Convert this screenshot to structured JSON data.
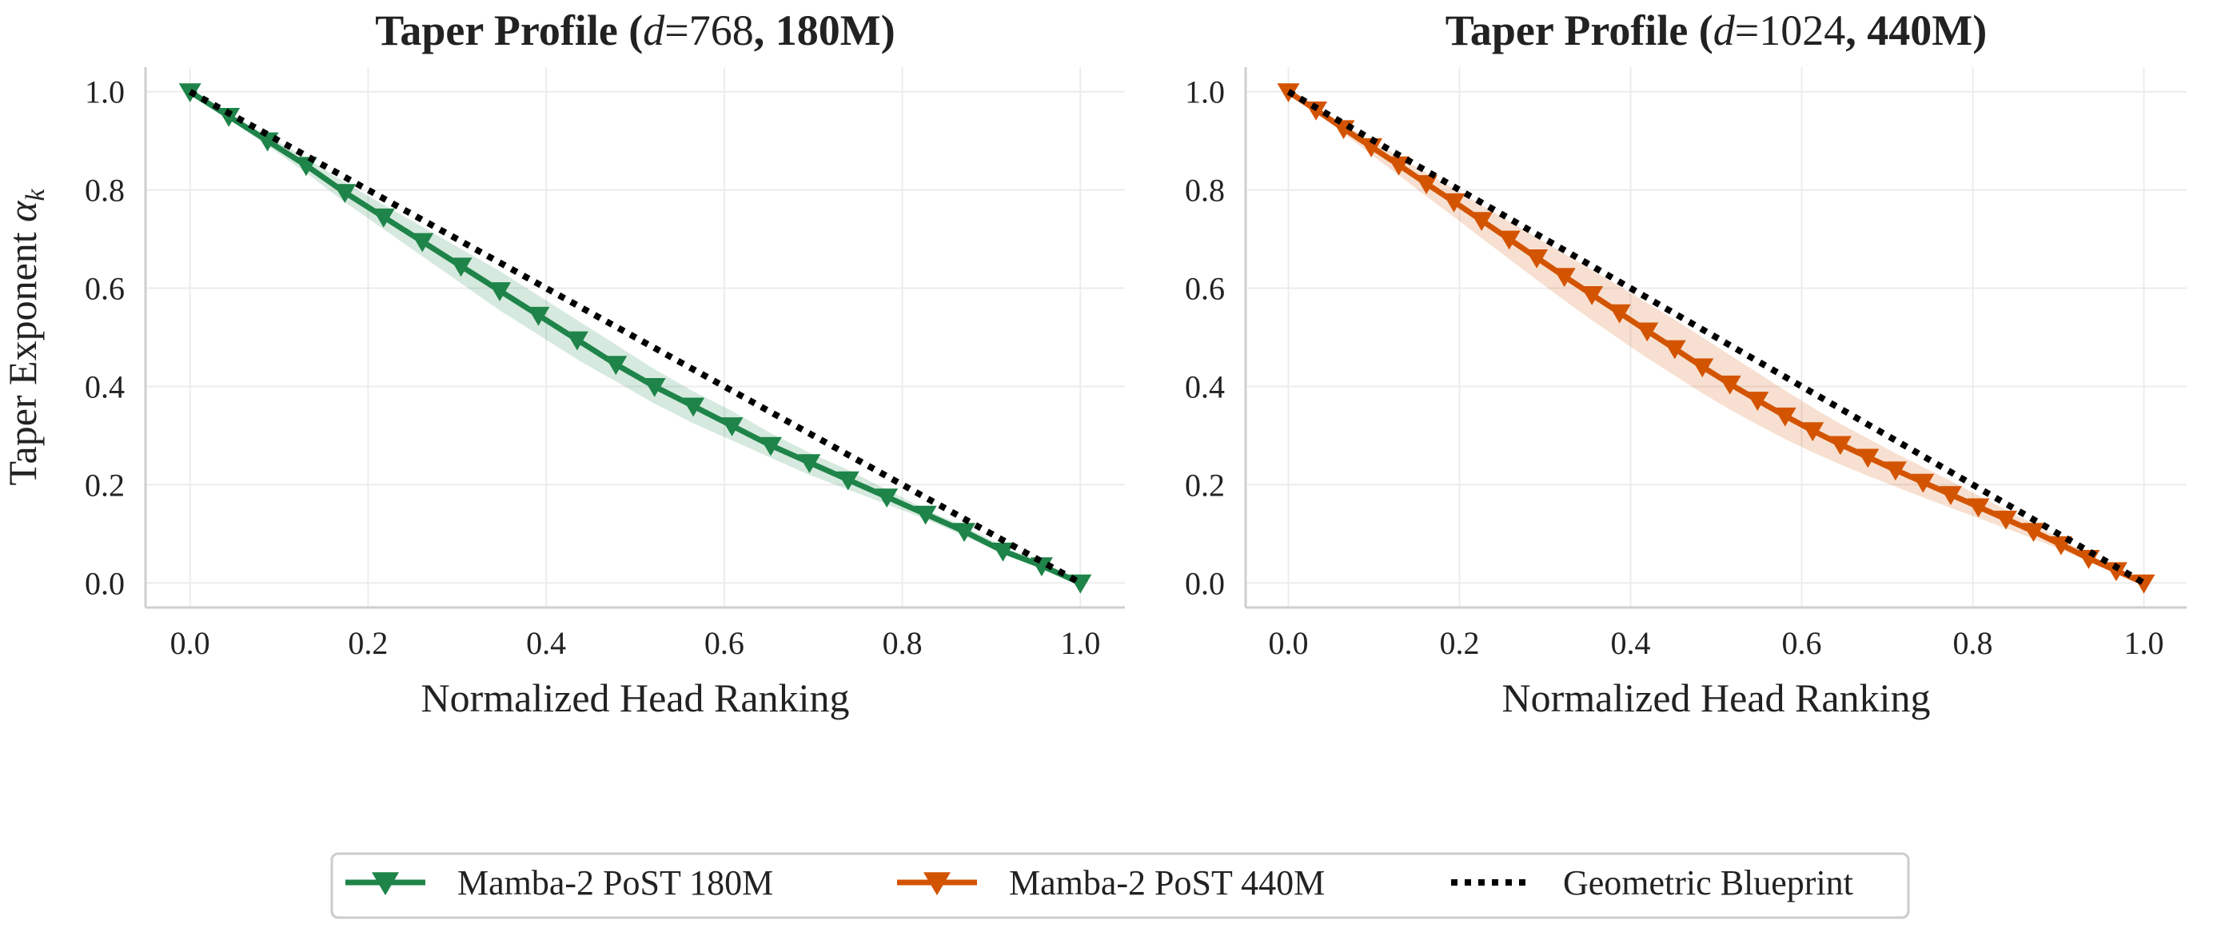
{
  "chart_data": [
    {
      "type": "line",
      "title_parts": [
        "Taper Profile (",
        "d",
        "=",
        "768",
        ", 180M)"
      ],
      "xlabel": "Normalized Head Ranking",
      "ylabel_parts": [
        "Taper Exponent ",
        "α",
        "k"
      ],
      "xlim": [
        -0.05,
        1.05
      ],
      "ylim": [
        -0.05,
        1.05
      ],
      "xticks": [
        "0.0",
        "0.2",
        "0.4",
        "0.6",
        "0.8",
        "1.0"
      ],
      "yticks": [
        "0.0",
        "0.2",
        "0.4",
        "0.6",
        "0.8",
        "1.0"
      ],
      "grid": true,
      "series": [
        {
          "name": "Mamba-2 PoST 180M",
          "color": "#1e8449",
          "marker": "triangle-down",
          "x": [
            0.0,
            0.0435,
            0.087,
            0.1304,
            0.1739,
            0.2174,
            0.2609,
            0.3043,
            0.3478,
            0.3913,
            0.4348,
            0.4783,
            0.5217,
            0.5652,
            0.6087,
            0.6522,
            0.6957,
            0.7391,
            0.7826,
            0.8261,
            0.8696,
            0.913,
            0.9565,
            1.0
          ],
          "y": [
            1.0,
            0.95,
            0.9,
            0.85,
            0.795,
            0.745,
            0.695,
            0.645,
            0.595,
            0.545,
            0.495,
            0.445,
            0.4,
            0.36,
            0.32,
            0.28,
            0.245,
            0.21,
            0.175,
            0.14,
            0.105,
            0.065,
            0.035,
            0.0
          ],
          "band_lower": [
            1.0,
            0.945,
            0.89,
            0.835,
            0.775,
            0.72,
            0.665,
            0.61,
            0.555,
            0.505,
            0.455,
            0.41,
            0.365,
            0.325,
            0.29,
            0.255,
            0.22,
            0.19,
            0.16,
            0.13,
            0.095,
            0.06,
            0.03,
            0.0
          ],
          "band_upper": [
            1.0,
            0.955,
            0.91,
            0.865,
            0.815,
            0.77,
            0.725,
            0.68,
            0.635,
            0.585,
            0.535,
            0.485,
            0.435,
            0.39,
            0.35,
            0.305,
            0.265,
            0.23,
            0.19,
            0.15,
            0.115,
            0.075,
            0.04,
            0.0
          ]
        },
        {
          "name": "Geometric Blueprint",
          "color": "#000000",
          "style": "dotted",
          "x": [
            0.0,
            1.0
          ],
          "y": [
            1.0,
            0.0
          ]
        }
      ]
    },
    {
      "type": "line",
      "title_parts": [
        "Taper Profile (",
        "d",
        "=",
        "1024",
        ", 440M)"
      ],
      "xlabel": "Normalized Head Ranking",
      "ylabel_parts": [
        "",
        "",
        ""
      ],
      "xlim": [
        -0.05,
        1.05
      ],
      "ylim": [
        -0.05,
        1.05
      ],
      "xticks": [
        "0.0",
        "0.2",
        "0.4",
        "0.6",
        "0.8",
        "1.0"
      ],
      "yticks": [
        "0.0",
        "0.2",
        "0.4",
        "0.6",
        "0.8",
        "1.0"
      ],
      "grid": true,
      "series": [
        {
          "name": "Mamba-2 PoST 440M",
          "color": "#d35400",
          "marker": "triangle-down",
          "x": [
            0.0,
            0.0323,
            0.0645,
            0.0968,
            0.129,
            0.1613,
            0.1935,
            0.2258,
            0.2581,
            0.2903,
            0.3226,
            0.3548,
            0.3871,
            0.4194,
            0.4516,
            0.4839,
            0.5161,
            0.5484,
            0.5806,
            0.6129,
            0.6452,
            0.6774,
            0.7097,
            0.7419,
            0.7742,
            0.8065,
            0.8387,
            0.871,
            0.9032,
            0.9355,
            0.9677,
            1.0
          ],
          "y": [
            1.0,
            0.963,
            0.925,
            0.888,
            0.851,
            0.813,
            0.776,
            0.738,
            0.7,
            0.662,
            0.624,
            0.587,
            0.55,
            0.513,
            0.477,
            0.44,
            0.405,
            0.372,
            0.34,
            0.31,
            0.282,
            0.256,
            0.23,
            0.205,
            0.18,
            0.155,
            0.13,
            0.105,
            0.078,
            0.05,
            0.025,
            0.0
          ],
          "band_lower": [
            1.0,
            0.958,
            0.915,
            0.872,
            0.83,
            0.787,
            0.745,
            0.702,
            0.659,
            0.617,
            0.575,
            0.535,
            0.496,
            0.458,
            0.422,
            0.386,
            0.353,
            0.322,
            0.293,
            0.266,
            0.241,
            0.218,
            0.196,
            0.174,
            0.153,
            0.132,
            0.111,
            0.09,
            0.068,
            0.044,
            0.022,
            0.0
          ],
          "band_upper": [
            1.0,
            0.967,
            0.934,
            0.901,
            0.868,
            0.835,
            0.802,
            0.769,
            0.736,
            0.703,
            0.67,
            0.637,
            0.604,
            0.57,
            0.536,
            0.5,
            0.464,
            0.428,
            0.392,
            0.357,
            0.324,
            0.294,
            0.264,
            0.236,
            0.208,
            0.178,
            0.149,
            0.12,
            0.089,
            0.058,
            0.029,
            0.0
          ]
        },
        {
          "name": "Geometric Blueprint",
          "color": "#000000",
          "style": "dotted",
          "x": [
            0.0,
            1.0
          ],
          "y": [
            1.0,
            0.0
          ]
        }
      ]
    }
  ],
  "legend": {
    "placement": "bottom-center",
    "items": [
      {
        "label": "Mamba-2 PoST 180M",
        "color": "#1e8449",
        "marker": "triangle-down",
        "style": "solid"
      },
      {
        "label": "Mamba-2 PoST 440M",
        "color": "#d35400",
        "marker": "triangle-down",
        "style": "solid"
      },
      {
        "label": "Geometric Blueprint",
        "color": "#000000",
        "style": "dotted"
      }
    ]
  }
}
